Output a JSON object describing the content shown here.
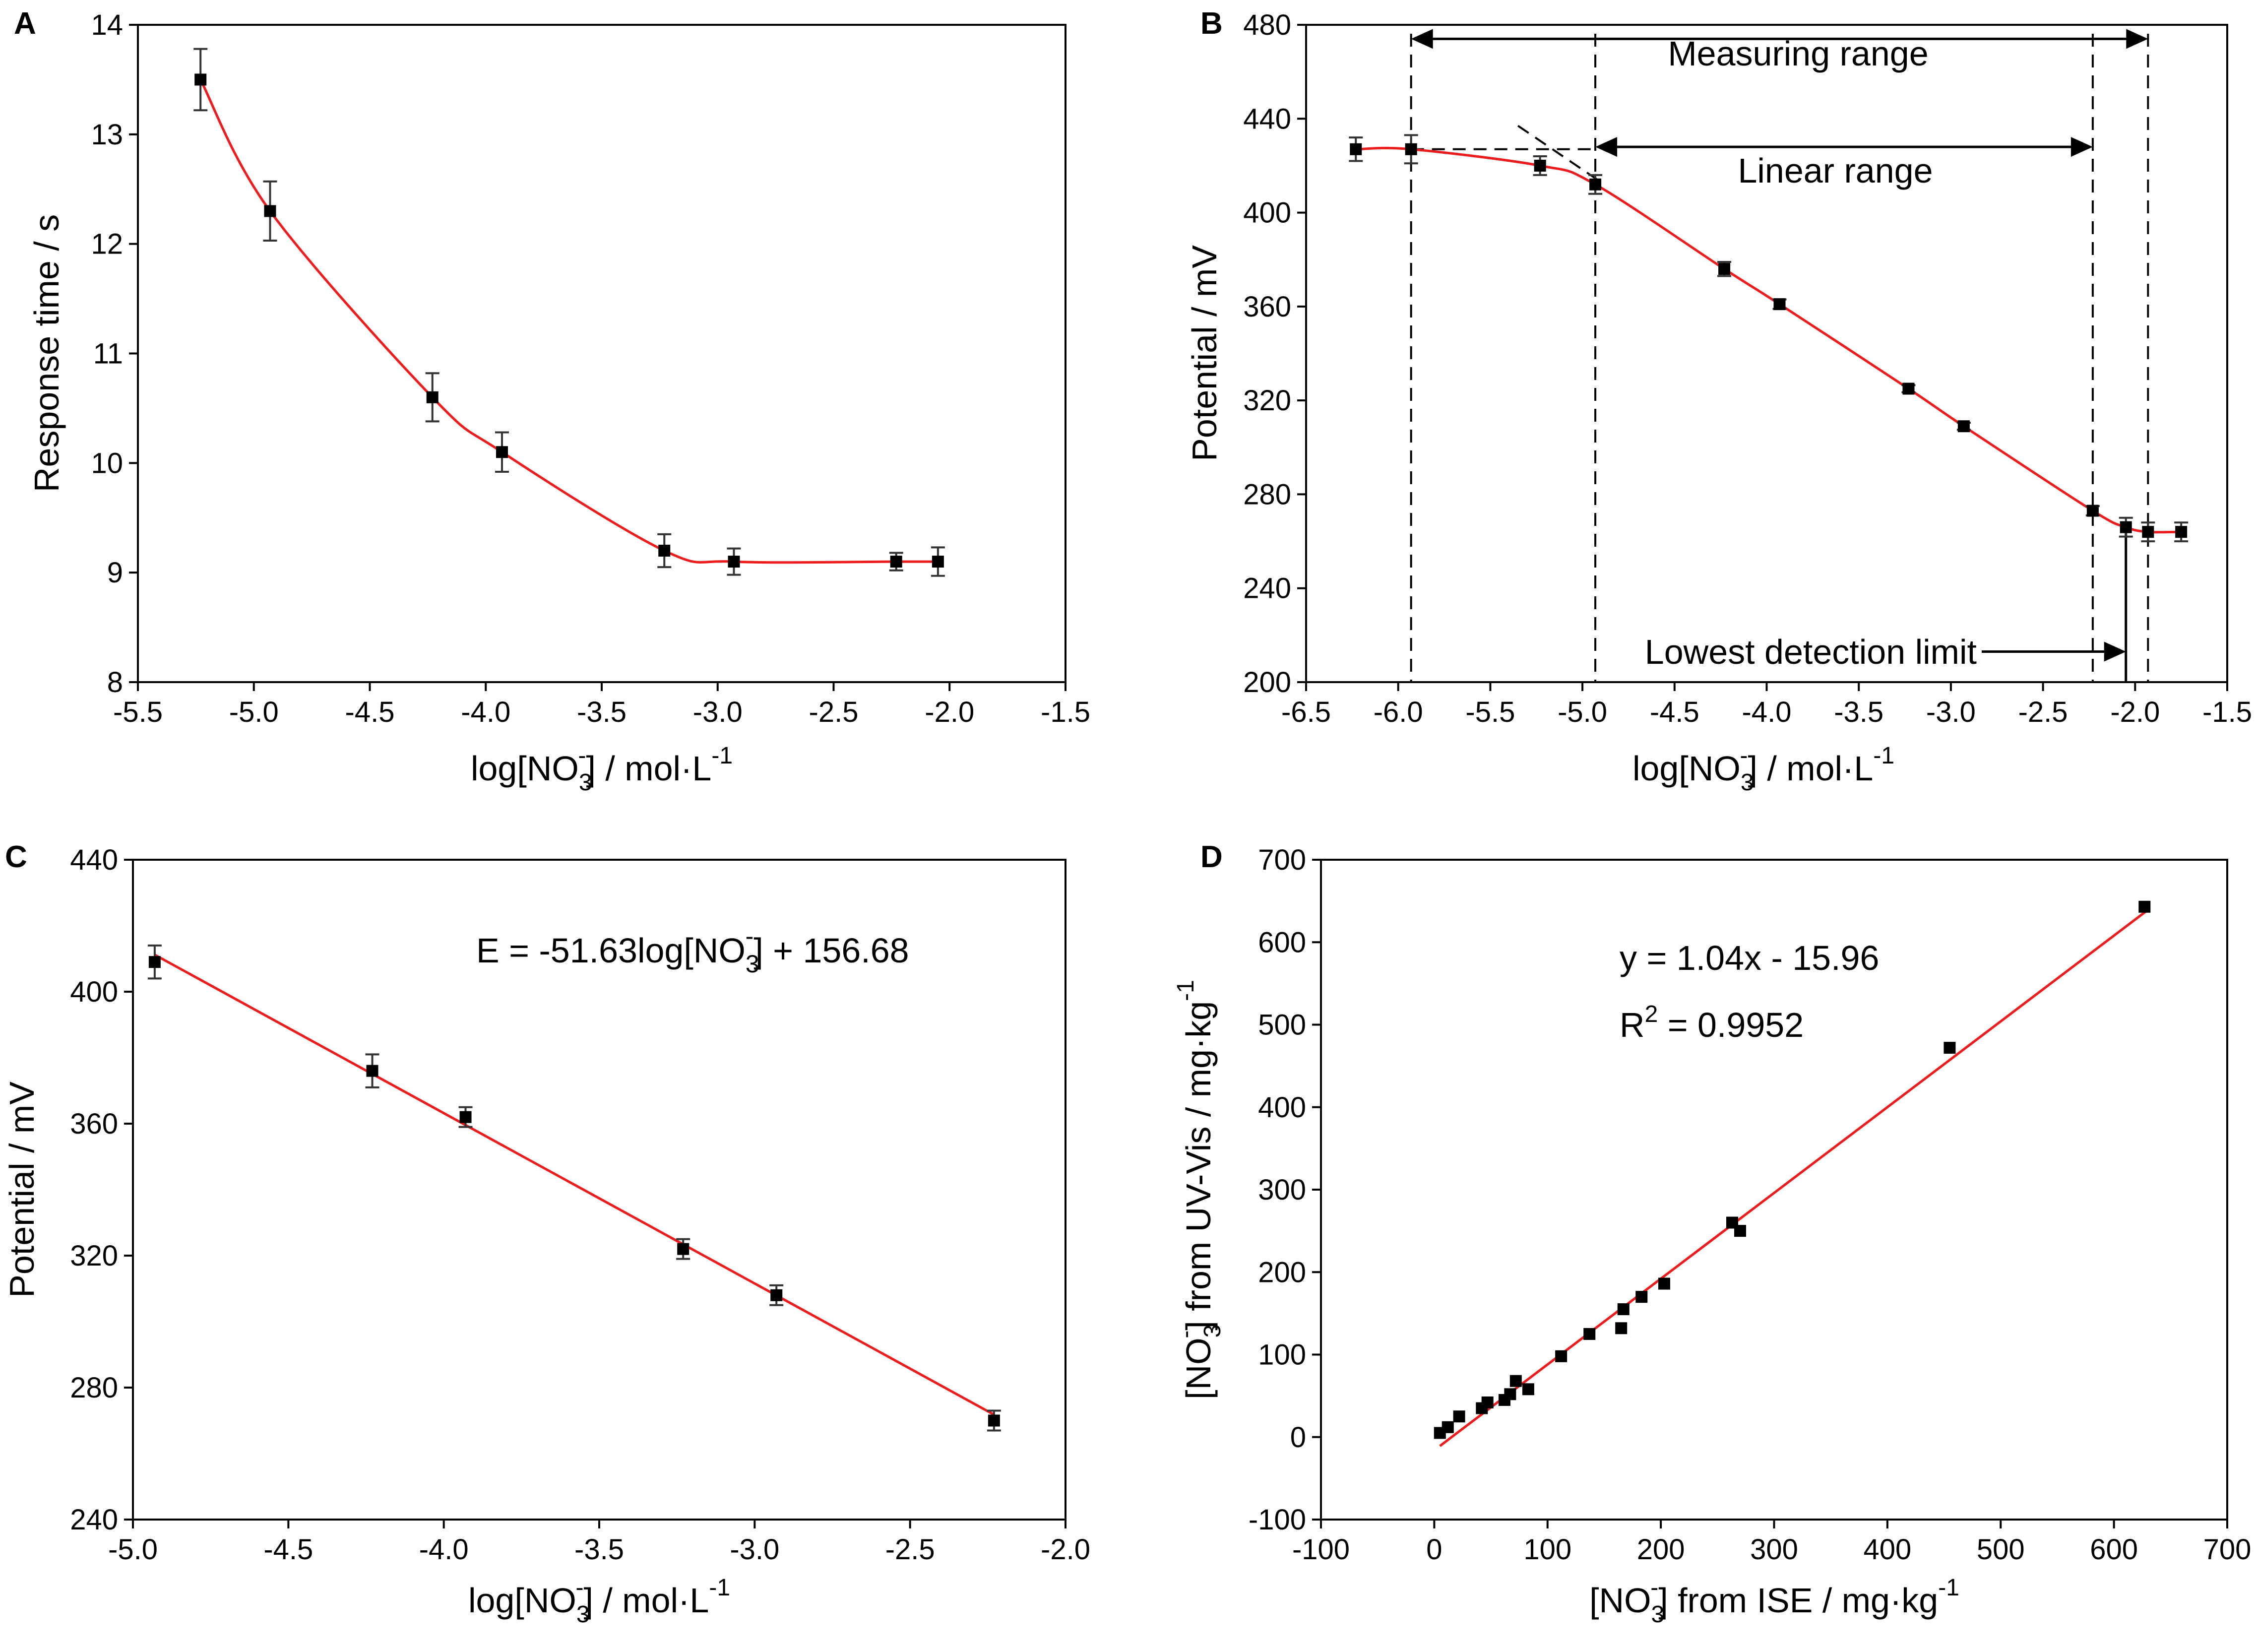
{
  "colors": {
    "fit_line": "#ee1c1c",
    "points": "#000000",
    "error_bars": "#333333"
  },
  "chart_data": [
    {
      "panel": "A",
      "type": "line",
      "title": "",
      "xlabel": "log[NO3-] / mol·L-1",
      "xlabel_parts": {
        "pre": "log[NO",
        "sub": "3",
        "sup": "-",
        "post": "] / mol·L",
        "exp": "-1"
      },
      "ylabel": "Response time / s",
      "xlim": [
        -5.5,
        -1.5
      ],
      "ylim": [
        8,
        14
      ],
      "xticks": [
        -5.5,
        -5.0,
        -4.5,
        -4.0,
        -3.5,
        -3.0,
        -2.5,
        -2.0,
        -1.5
      ],
      "xtick_labels": [
        "-5.5",
        "-5.0",
        "-4.5",
        "-4.0",
        "-3.5",
        "-3.0",
        "-2.5",
        "-2.0",
        "-1.5"
      ],
      "yticks": [
        8,
        9,
        10,
        11,
        12,
        13,
        14
      ],
      "ytick_labels": [
        "8",
        "9",
        "10",
        "11",
        "12",
        "13",
        "14"
      ],
      "series": [
        {
          "name": "response time",
          "x": [
            -5.23,
            -4.93,
            -4.23,
            -3.93,
            -3.23,
            -2.93,
            -2.23,
            -2.05
          ],
          "y": [
            13.5,
            12.3,
            10.6,
            10.1,
            9.2,
            9.1,
            9.1,
            9.1
          ],
          "yerr": [
            0.28,
            0.27,
            0.22,
            0.18,
            0.15,
            0.12,
            0.08,
            0.13
          ]
        }
      ],
      "fit": {
        "kind": "smooth",
        "x": [
          -5.23,
          -4.93,
          -4.23,
          -3.93,
          -3.23,
          -2.93,
          -2.23,
          -2.05
        ],
        "y": [
          13.5,
          12.3,
          10.6,
          10.1,
          9.2,
          9.1,
          9.1,
          9.1
        ]
      }
    },
    {
      "panel": "B",
      "type": "line",
      "title": "",
      "xlabel": "log[NO3-] / mol·L-1",
      "xlabel_parts": {
        "pre": "log[NO",
        "sub": "3",
        "sup": "-",
        "post": "] / mol·L",
        "exp": "-1"
      },
      "ylabel": "Potential / mV",
      "xlim": [
        -6.5,
        -1.5
      ],
      "ylim": [
        200,
        480
      ],
      "xticks": [
        -6.5,
        -6.0,
        -5.5,
        -5.0,
        -4.5,
        -4.0,
        -3.5,
        -3.0,
        -2.5,
        -2.0,
        -1.5
      ],
      "xtick_labels": [
        "-6.5",
        "-6.0",
        "-5.5",
        "-5.0",
        "-4.5",
        "-4.0",
        "-3.5",
        "-3.0",
        "-2.5",
        "-2.0",
        "-1.5"
      ],
      "yticks": [
        200,
        240,
        280,
        320,
        360,
        400,
        440,
        480
      ],
      "ytick_labels": [
        "200",
        "240",
        "280",
        "320",
        "360",
        "400",
        "440",
        "480"
      ],
      "series": [
        {
          "name": "potential",
          "x": [
            -6.23,
            -5.93,
            -5.23,
            -4.93,
            -4.23,
            -3.93,
            -3.23,
            -2.93,
            -2.23,
            -2.05,
            -1.93,
            -1.75
          ],
          "y": [
            427,
            427,
            420,
            412,
            376,
            361,
            325,
            309,
            273,
            266,
            264,
            264
          ],
          "yerr": [
            5,
            6,
            4,
            4,
            3,
            2,
            1.5,
            1.5,
            2,
            4,
            4,
            4
          ]
        }
      ],
      "fit": {
        "kind": "smooth",
        "x": [
          -6.23,
          -5.93,
          -5.23,
          -4.93,
          -4.23,
          -3.93,
          -3.23,
          -2.93,
          -2.23,
          -2.05,
          -1.93,
          -1.75
        ],
        "y": [
          427,
          427,
          420,
          412,
          376,
          361,
          325,
          309,
          273,
          266,
          264,
          264
        ]
      },
      "annotations": {
        "measuring_range": {
          "label": "Measuring range",
          "x_from": -5.93,
          "x_to": -1.93,
          "y": 474
        },
        "linear_range": {
          "label": "Linear range",
          "x_from": -4.93,
          "x_to": -2.23,
          "y": 428
        },
        "lowest_detection_limit": {
          "label": "Lowest detection limit",
          "x_to": -2.05,
          "y": 213
        },
        "vertical_dashed_x": [
          -5.93,
          -4.93,
          -2.23,
          -1.93
        ],
        "vertical_solid_x": -2.05,
        "horizontal_dashed": {
          "x_from": -5.93,
          "x_to": -4.93,
          "y": 427
        },
        "extrapolated_line": {
          "x_from": -5.35,
          "x_to": -4.9,
          "y_from": 437,
          "y_to": 413
        }
      }
    },
    {
      "panel": "C",
      "type": "line",
      "title": "",
      "xlabel": "log[NO3-] / mol·L-1",
      "xlabel_parts": {
        "pre": "log[NO",
        "sub": "3",
        "sup": "-",
        "post": "] / mol·L",
        "exp": "-1"
      },
      "ylabel": "Potential / mV",
      "xlim": [
        -5.0,
        -2.0
      ],
      "ylim": [
        240,
        440
      ],
      "xticks": [
        -5.0,
        -4.5,
        -4.0,
        -3.5,
        -3.0,
        -2.5,
        -2.0
      ],
      "xtick_labels": [
        "-5.0",
        "-4.5",
        "-4.0",
        "-3.5",
        "-3.0",
        "-2.5",
        "-2.0"
      ],
      "yticks": [
        240,
        280,
        320,
        360,
        400,
        440
      ],
      "ytick_labels": [
        "240",
        "280",
        "320",
        "360",
        "400",
        "440"
      ],
      "series": [
        {
          "name": "potential",
          "x": [
            -4.93,
            -4.23,
            -3.93,
            -3.23,
            -2.93,
            -2.23
          ],
          "y": [
            409,
            376,
            362,
            322,
            308,
            270
          ],
          "yerr": [
            5,
            5,
            3,
            3,
            3,
            3
          ]
        }
      ],
      "fit": {
        "kind": "linear",
        "x": [
          -4.93,
          -2.23
        ],
        "y": [
          411.2,
          271.8
        ]
      },
      "equation": {
        "pre": "E = -51.63log[NO",
        "sub": "3",
        "sup": "-",
        "post": "] + 156.68"
      }
    },
    {
      "panel": "D",
      "type": "scatter",
      "title": "",
      "xlabel": "[NO3-] from ISE / mg·kg-1",
      "xlabel_parts": {
        "pre": "[NO",
        "sub": "3",
        "sup": "-",
        "post": "] from ISE / mg·kg",
        "exp": "-1"
      },
      "ylabel": "[NO3-] from UV-Vis / mg·kg-1",
      "ylabel_parts": {
        "pre": "[NO",
        "sub": "3",
        "sup": "-",
        "post": "] from UV-Vis / mg·kg",
        "exp": "-1"
      },
      "xlim": [
        -100,
        700
      ],
      "ylim": [
        -100,
        700
      ],
      "xticks": [
        -100,
        0,
        100,
        200,
        300,
        400,
        500,
        600,
        700
      ],
      "xtick_labels": [
        "-100",
        "0",
        "100",
        "200",
        "300",
        "400",
        "500",
        "600",
        "700"
      ],
      "yticks": [
        -100,
        0,
        100,
        200,
        300,
        400,
        500,
        600,
        700
      ],
      "ytick_labels": [
        "-100",
        "0",
        "100",
        "200",
        "300",
        "400",
        "500",
        "600",
        "700"
      ],
      "series": [
        {
          "name": "samples",
          "x": [
            5,
            12,
            22,
            42,
            47,
            62,
            67,
            72,
            83,
            112,
            137,
            165,
            167,
            183,
            203,
            263,
            270,
            455,
            627
          ],
          "y": [
            5,
            12,
            25,
            35,
            42,
            45,
            52,
            68,
            58,
            98,
            125,
            132,
            155,
            170,
            186,
            260,
            250,
            472,
            643
          ]
        }
      ],
      "fit": {
        "kind": "linear",
        "x": [
          5,
          630
        ],
        "y": [
          -10.8,
          639.2
        ]
      },
      "equation": {
        "line1": "y = 1.04x - 15.96",
        "r2_pre": "R",
        "r2_sup": "2",
        "r2_post": " = 0.9952"
      }
    }
  ]
}
